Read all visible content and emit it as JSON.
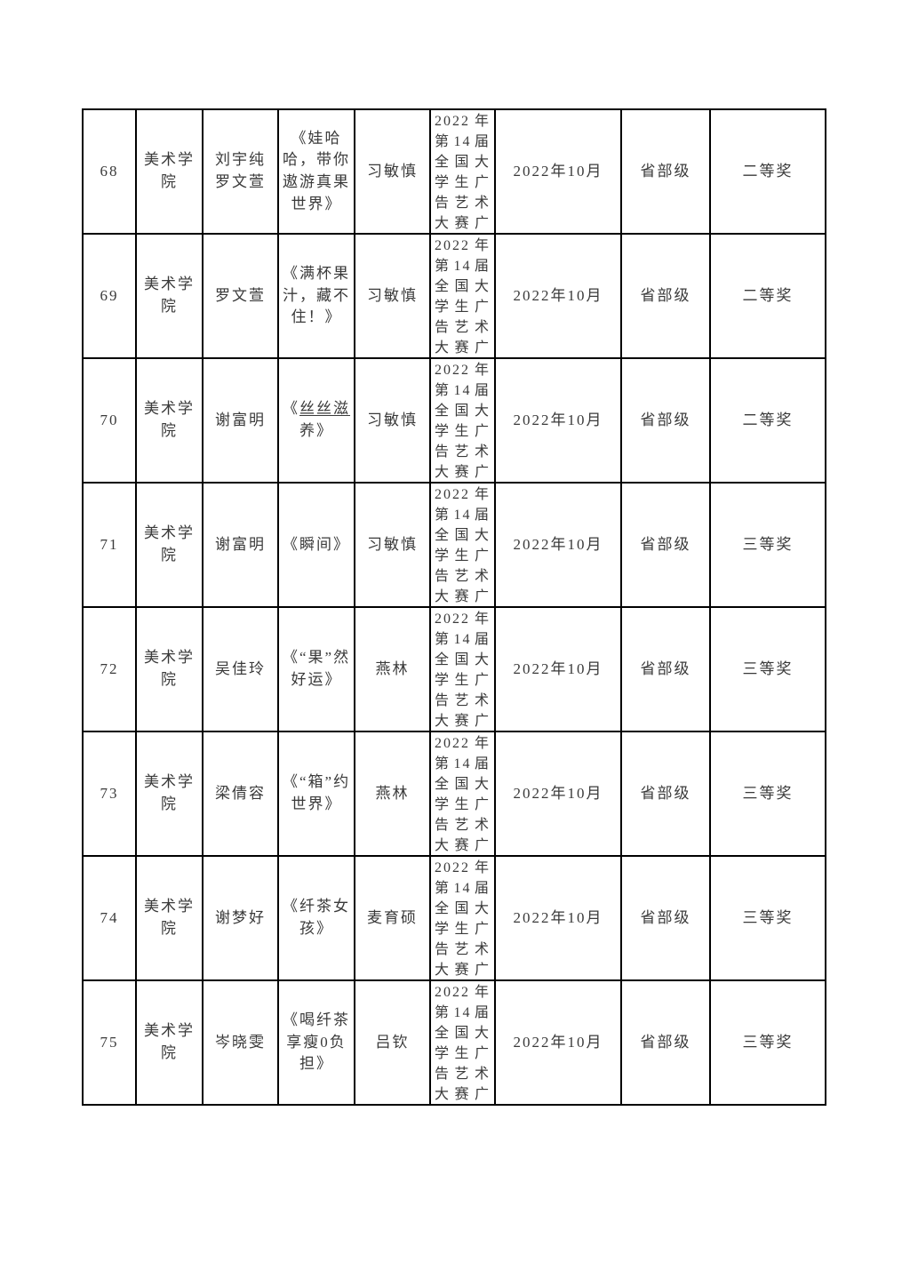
{
  "page": {
    "background_color": "#ffffff",
    "text_color": "#3a3a3a",
    "border_color": "#000000"
  },
  "table": {
    "rows": [
      {
        "no": "68",
        "college": "美术学院",
        "name": "刘宇纯\n罗文萱",
        "work": "《娃哈哈，带你遨游真果世界》",
        "advisor": "习敏慎",
        "competition": "2022年第14届全国大学生广告艺术大赛广",
        "date": "2022年10月",
        "level": "省部级",
        "award": "二等奖"
      },
      {
        "no": "69",
        "college": "美术学院",
        "name": "罗文萱",
        "work": "《满杯果汁，藏不住！》",
        "advisor": "习敏慎",
        "competition": "2022年第14届全国大学生广告艺术大赛广",
        "date": "2022年10月",
        "level": "省部级",
        "award": "二等奖"
      },
      {
        "no": "70",
        "college": "美术学院",
        "name": "谢富明",
        "work": "《丝丝滋养》",
        "work_underline": "丝丝滋",
        "advisor": "习敏慎",
        "competition": "2022年第14届全国大学生广告艺术大赛广",
        "date": "2022年10月",
        "level": "省部级",
        "award": "二等奖"
      },
      {
        "no": "71",
        "college": "美术学院",
        "name": "谢富明",
        "work": "《瞬间》",
        "advisor": "习敏慎",
        "competition": "2022年第14届全国大学生广告艺术大赛广",
        "date": "2022年10月",
        "level": "省部级",
        "award": "三等奖"
      },
      {
        "no": "72",
        "college": "美术学院",
        "name": "吴佳玲",
        "work": "《“果”然好运》",
        "advisor": "燕林",
        "competition": "2022年第14届全国大学生广告艺术大赛广",
        "date": "2022年10月",
        "level": "省部级",
        "award": "三等奖"
      },
      {
        "no": "73",
        "college": "美术学院",
        "name": "梁倩容",
        "work": "《“箱”约世界》",
        "advisor": "燕林",
        "competition": "2022年第14届全国大学生广告艺术大赛广",
        "date": "2022年10月",
        "level": "省部级",
        "award": "三等奖"
      },
      {
        "no": "74",
        "college": "美术学院",
        "name": "谢梦好",
        "work": "《纤茶女孩》",
        "advisor": "麦育硕",
        "competition": "2022年第14届全国大学生广告艺术大赛广",
        "date": "2022年10月",
        "level": "省部级",
        "award": "三等奖"
      },
      {
        "no": "75",
        "college": "美术学院",
        "name": "岑晓雯",
        "work": "《喝纤茶享瘦0负担》",
        "advisor": "吕钦",
        "competition": "2022年第14届全国大学生广告艺术大赛广",
        "date": "2022年10月",
        "level": "省部级",
        "award": "三等奖"
      }
    ]
  }
}
